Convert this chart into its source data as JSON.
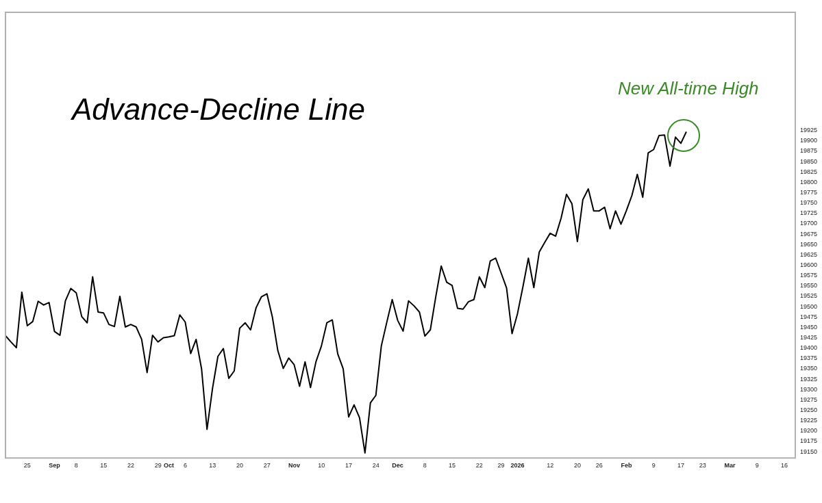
{
  "chart_data": {
    "type": "line",
    "title": "Advance-Decline Line",
    "annotations": [
      "New All-time High"
    ],
    "categories": [
      null,
      null,
      null,
      null,
      "25",
      null,
      null,
      null,
      null,
      "Sep",
      null,
      null,
      null,
      "8",
      null,
      null,
      null,
      null,
      "15",
      null,
      null,
      null,
      null,
      "22",
      null,
      null,
      null,
      null,
      "29",
      null,
      "Oct",
      null,
      null,
      "6",
      null,
      null,
      null,
      null,
      "13",
      null,
      null,
      null,
      null,
      "20",
      null,
      null,
      null,
      null,
      "27",
      null,
      null,
      null,
      null,
      "Nov",
      null,
      null,
      null,
      null,
      "10",
      null,
      null,
      null,
      null,
      "17",
      null,
      null,
      null,
      null,
      "24",
      null,
      null,
      null,
      "Dec",
      null,
      null,
      null,
      null,
      "8",
      null,
      null,
      null,
      null,
      "15",
      null,
      null,
      null,
      null,
      "22",
      null,
      null,
      null,
      "29",
      null,
      null,
      "2026",
      null,
      null,
      null,
      null,
      null,
      "12",
      null,
      null,
      null,
      null,
      "20",
      null,
      null,
      null,
      "26",
      null,
      null,
      null,
      null,
      "Feb",
      null,
      null,
      null,
      null,
      "9",
      null,
      null,
      null,
      null,
      "17",
      null,
      null,
      null,
      "23",
      null,
      null,
      null,
      null,
      "Mar",
      null,
      null,
      null,
      null,
      "9",
      null,
      null,
      null,
      null,
      "16",
      null,
      null
    ],
    "series": [
      {
        "color": "#000000",
        "values": [
          19430,
          19415,
          19401,
          19535,
          19454,
          19464,
          19513,
          19504,
          19510,
          19440,
          19431,
          19514,
          19544,
          19533,
          19476,
          19461,
          19572,
          19487,
          19485,
          19457,
          19452,
          19525,
          19451,
          19457,
          19451,
          19421,
          19341,
          19431,
          19415,
          19425,
          19427,
          19430,
          19480,
          19463,
          19387,
          19421,
          19350,
          19204,
          19302,
          19380,
          19399,
          19327,
          19345,
          19448,
          19461,
          19444,
          19497,
          19524,
          19531,
          19475,
          19394,
          19351,
          19376,
          19360,
          19308,
          19367,
          19305,
          19367,
          19405,
          19461,
          19468,
          19386,
          19350,
          19234,
          19263,
          19232,
          19147,
          19268,
          19286,
          19405,
          19462,
          19517,
          19467,
          19441,
          19514,
          19502,
          19487,
          19429,
          19444,
          19524,
          19598,
          19559,
          19551,
          19496,
          19494,
          19512,
          19517,
          19572,
          19546,
          19610,
          19617,
          19581,
          19545,
          19435,
          19483,
          19548,
          19617,
          19546,
          19632,
          19655,
          19677,
          19670,
          19713,
          19771,
          19748,
          19657,
          19758,
          19784,
          19731,
          19731,
          19740,
          19688,
          19731,
          19699,
          19732,
          19768,
          19819,
          19764,
          19871,
          19879,
          19913,
          19914,
          19839,
          19909,
          19894,
          19922,
          null,
          null,
          null,
          null,
          null,
          null,
          null,
          null,
          null,
          null,
          null,
          null,
          null,
          null,
          null,
          null,
          null,
          null,
          null,
          null
        ]
      }
    ],
    "ylim": [
      19135,
      20210
    ],
    "yticks": [
      19150,
      19175,
      19200,
      19225,
      19250,
      19275,
      19300,
      19325,
      19350,
      19375,
      19400,
      19425,
      19450,
      19475,
      19500,
      19525,
      19550,
      19575,
      19600,
      19625,
      19650,
      19675,
      19700,
      19725,
      19750,
      19775,
      19800,
      19825,
      19850,
      19875,
      19900,
      19925
    ],
    "marker": "none",
    "line_style": "solid"
  }
}
